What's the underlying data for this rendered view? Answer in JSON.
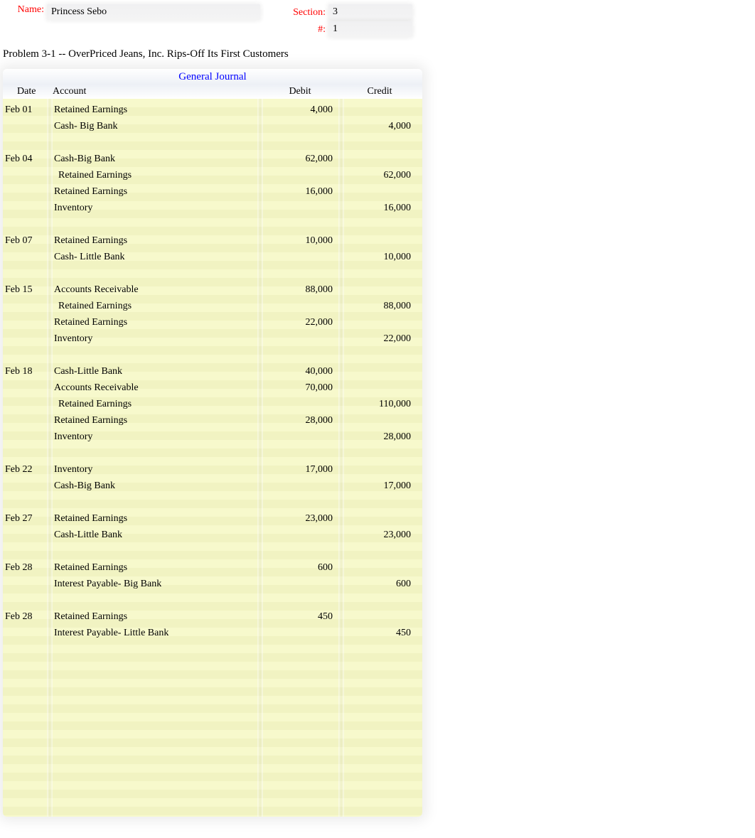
{
  "header": {
    "name_label": "Name:",
    "name_value": "Princess Sebo",
    "section_label": "Section:",
    "section_value": "3",
    "number_label": "#:",
    "number_value": "1"
  },
  "problem_title": "Problem 3-1 -- OverPriced Jeans, Inc. Rips-Off Its First Customers",
  "journal": {
    "title": "General Journal",
    "columns": {
      "date": "Date",
      "account": "Account",
      "debit": "Debit",
      "credit": "Credit"
    },
    "rows": [
      {
        "date": "Feb 01",
        "account": "Retained Earnings",
        "debit": "4,000",
        "credit": ""
      },
      {
        "date": "",
        "account": "Cash- Big Bank",
        "debit": "",
        "credit": "4,000"
      },
      {
        "spacer": true
      },
      {
        "date": "Feb 04",
        "account": "Cash-Big Bank",
        "debit": "62,000",
        "credit": ""
      },
      {
        "date": "",
        "account": "Retained Earnings",
        "indent": true,
        "debit": "",
        "credit": "62,000"
      },
      {
        "date": "",
        "account": "Retained Earnings",
        "debit": "16,000",
        "credit": ""
      },
      {
        "date": "",
        "account": "Inventory",
        "debit": "",
        "credit": "16,000"
      },
      {
        "spacer": true
      },
      {
        "date": "Feb 07",
        "account": "Retained Earnings",
        "debit": "10,000",
        "credit": ""
      },
      {
        "date": "",
        "account": "Cash- Little Bank",
        "debit": "",
        "credit": "10,000"
      },
      {
        "spacer": true
      },
      {
        "date": "Feb 15",
        "account": "Accounts Receivable",
        "debit": "88,000",
        "credit": ""
      },
      {
        "date": "",
        "account": "Retained Earnings",
        "indent": true,
        "debit": "",
        "credit": "88,000"
      },
      {
        "date": "",
        "account": "Retained Earnings",
        "debit": "22,000",
        "credit": ""
      },
      {
        "date": "",
        "account": "Inventory",
        "debit": "",
        "credit": "22,000"
      },
      {
        "spacer": true
      },
      {
        "date": "Feb 18",
        "account": "Cash-Little Bank",
        "debit": "40,000",
        "credit": ""
      },
      {
        "date": "",
        "account": "Accounts Receivable",
        "debit": "70,000",
        "credit": ""
      },
      {
        "date": "",
        "account": "Retained Earnings",
        "indent": true,
        "debit": "",
        "credit": "110,000"
      },
      {
        "date": "",
        "account": "Retained Earnings",
        "debit": "28,000",
        "credit": ""
      },
      {
        "date": "",
        "account": "Inventory",
        "debit": "",
        "credit": "28,000"
      },
      {
        "spacer": true
      },
      {
        "date": "Feb 22",
        "account": "Inventory",
        "debit": "17,000",
        "credit": ""
      },
      {
        "date": "",
        "account": "Cash-Big Bank",
        "debit": "",
        "credit": "17,000"
      },
      {
        "spacer": true
      },
      {
        "date": "Feb 27",
        "account": "Retained Earnings",
        "debit": "23,000",
        "credit": ""
      },
      {
        "date": "",
        "account": "Cash-Little Bank",
        "debit": "",
        "credit": "23,000"
      },
      {
        "spacer": true
      },
      {
        "date": "Feb 28",
        "account": "Retained Earnings",
        "debit": "600",
        "credit": ""
      },
      {
        "date": "",
        "account": "Interest Payable- Big Bank",
        "debit": "",
        "credit": "600"
      },
      {
        "spacer": true
      },
      {
        "date": "Feb 28",
        "account": "Retained Earnings",
        "debit": "450",
        "credit": ""
      },
      {
        "date": "",
        "account": "Interest Payable- Little Bank",
        "debit": "",
        "credit": "450"
      }
    ]
  },
  "styling": {
    "label_color": "#ff0000",
    "title_color": "#0000ff",
    "ledger_bg_light": "#f7f9cc",
    "ledger_bg_dark": "#f1f3c2",
    "page_bg": "#ffffff"
  }
}
